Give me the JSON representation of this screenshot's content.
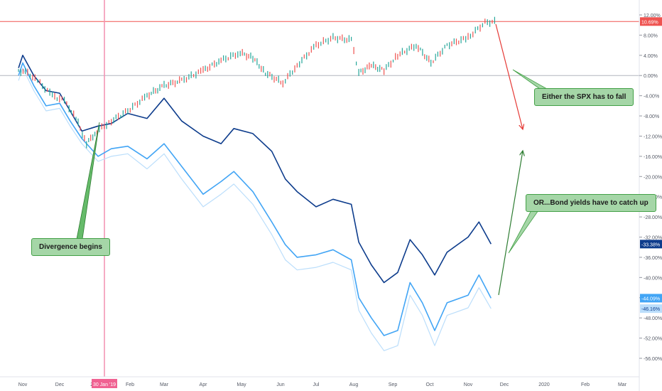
{
  "chart_data": {
    "type": "line",
    "x_labels": [
      "Nov",
      "Dec",
      "2019",
      "Jan '19",
      "Feb",
      "Mar",
      "Apr",
      "May",
      "Jun",
      "Jul",
      "Aug",
      "Sep",
      "Oct",
      "Nov",
      "Dec",
      "2020",
      "Feb",
      "Mar"
    ],
    "y_ticks": [
      "12.00%",
      "8.00%",
      "4.00%",
      "0.00%",
      "-4.00%",
      "-8.00%",
      "-12.00%",
      "-16.00%",
      "-20.00%",
      "-24.00%",
      "-28.00%",
      "-32.00%",
      "-36.00%",
      "-40.00%",
      "-44.00%",
      "-48.00%",
      "-52.00%",
      "-56.00%"
    ],
    "ylim": [
      -58,
      13
    ],
    "y_unit": "%",
    "baseline": 0,
    "crosshair_x_label": "30 Jan '19",
    "reference_line": {
      "value": 10.69,
      "label": "10.69%",
      "color": "#ef5350"
    },
    "series": [
      {
        "color": "#26a69a",
        "style": "ohlc",
        "last_label": "10.69%",
        "points": [
          [
            "2018-10-25",
            1.0
          ],
          [
            "2018-11-05",
            0.5
          ],
          [
            "2018-11-15",
            -1.5
          ],
          [
            "2018-11-25",
            -4.0
          ],
          [
            "2018-12-05",
            -5.0
          ],
          [
            "2018-12-15",
            -8.5
          ],
          [
            "2018-12-24",
            -13.5
          ],
          [
            "2019-01-02",
            -11.0
          ],
          [
            "2019-01-15",
            -9.0
          ],
          [
            "2019-01-30",
            -7.0
          ],
          [
            "2019-02-15",
            -4.0
          ],
          [
            "2019-03-01",
            -2.0
          ],
          [
            "2019-03-15",
            -1.0
          ],
          [
            "2019-04-01",
            1.0
          ],
          [
            "2019-04-15",
            3.0
          ],
          [
            "2019-04-30",
            4.5
          ],
          [
            "2019-05-10",
            3.5
          ],
          [
            "2019-05-20",
            0.5
          ],
          [
            "2019-06-03",
            -1.5
          ],
          [
            "2019-06-15",
            2.0
          ],
          [
            "2019-07-01",
            6.0
          ],
          [
            "2019-07-15",
            7.5
          ],
          [
            "2019-07-30",
            7.0
          ],
          [
            "2019-08-05",
            0.5
          ],
          [
            "2019-08-15",
            2.0
          ],
          [
            "2019-08-25",
            1.0
          ],
          [
            "2019-09-05",
            4.0
          ],
          [
            "2019-09-20",
            6.0
          ],
          [
            "2019-10-02",
            2.5
          ],
          [
            "2019-10-15",
            6.0
          ],
          [
            "2019-11-01",
            7.5
          ],
          [
            "2019-11-15",
            10.5
          ],
          [
            "2019-11-25",
            10.69
          ]
        ]
      },
      {
        "color": "#0d3c8c",
        "last_label": "-33.38%",
        "points": [
          [
            "2018-10-25",
            1.5
          ],
          [
            "2018-11-01",
            4.0
          ],
          [
            "2018-11-10",
            0.0
          ],
          [
            "2018-11-20",
            -3.0
          ],
          [
            "2018-12-01",
            -3.5
          ],
          [
            "2018-12-10",
            -7.0
          ],
          [
            "2018-12-20",
            -11.0
          ],
          [
            "2019-01-03",
            -10.0
          ],
          [
            "2019-01-15",
            -9.5
          ],
          [
            "2019-01-30",
            -7.5
          ],
          [
            "2019-02-15",
            -8.5
          ],
          [
            "2019-03-01",
            -4.5
          ],
          [
            "2019-03-15",
            -9.0
          ],
          [
            "2019-04-01",
            -12.0
          ],
          [
            "2019-04-15",
            -13.5
          ],
          [
            "2019-04-25",
            -10.5
          ],
          [
            "2019-05-10",
            -11.5
          ],
          [
            "2019-05-25",
            -15.0
          ],
          [
            "2019-06-05",
            -20.5
          ],
          [
            "2019-06-15",
            -23.0
          ],
          [
            "2019-07-01",
            -26.0
          ],
          [
            "2019-07-15",
            -24.5
          ],
          [
            "2019-07-30",
            -25.5
          ],
          [
            "2019-08-05",
            -33.0
          ],
          [
            "2019-08-15",
            -37.5
          ],
          [
            "2019-08-25",
            -41.0
          ],
          [
            "2019-09-05",
            -39.0
          ],
          [
            "2019-09-15",
            -32.5
          ],
          [
            "2019-09-25",
            -35.5
          ],
          [
            "2019-10-05",
            -39.5
          ],
          [
            "2019-10-15",
            -35.0
          ],
          [
            "2019-11-01",
            -32.0
          ],
          [
            "2019-11-10",
            -29.0
          ],
          [
            "2019-11-20",
            -33.38
          ]
        ]
      },
      {
        "color": "#42a5f5",
        "last_label": "-44.09%",
        "points": [
          [
            "2018-10-25",
            0.0
          ],
          [
            "2018-11-01",
            2.5
          ],
          [
            "2018-11-10",
            -2.0
          ],
          [
            "2018-11-20",
            -6.0
          ],
          [
            "2018-12-01",
            -5.5
          ],
          [
            "2018-12-10",
            -9.0
          ],
          [
            "2018-12-20",
            -12.5
          ],
          [
            "2019-01-03",
            -16.0
          ],
          [
            "2019-01-15",
            -14.5
          ],
          [
            "2019-01-30",
            -14.0
          ],
          [
            "2019-02-15",
            -16.5
          ],
          [
            "2019-03-01",
            -13.5
          ],
          [
            "2019-03-15",
            -18.0
          ],
          [
            "2019-04-01",
            -23.5
          ],
          [
            "2019-04-15",
            -21.0
          ],
          [
            "2019-04-25",
            -19.0
          ],
          [
            "2019-05-10",
            -23.0
          ],
          [
            "2019-05-25",
            -29.0
          ],
          [
            "2019-06-05",
            -33.5
          ],
          [
            "2019-06-15",
            -36.0
          ],
          [
            "2019-07-01",
            -35.5
          ],
          [
            "2019-07-15",
            -34.5
          ],
          [
            "2019-07-30",
            -36.5
          ],
          [
            "2019-08-05",
            -44.0
          ],
          [
            "2019-08-15",
            -48.0
          ],
          [
            "2019-08-25",
            -51.5
          ],
          [
            "2019-09-05",
            -50.5
          ],
          [
            "2019-09-15",
            -41.0
          ],
          [
            "2019-09-25",
            -45.0
          ],
          [
            "2019-10-05",
            -50.5
          ],
          [
            "2019-10-15",
            -45.0
          ],
          [
            "2019-11-01",
            -43.5
          ],
          [
            "2019-11-10",
            -39.5
          ],
          [
            "2019-11-20",
            -44.09
          ]
        ]
      },
      {
        "color": "#bbdefb",
        "last_label": "-46.16%",
        "points": [
          [
            "2018-10-25",
            -1.0
          ],
          [
            "2018-11-01",
            1.5
          ],
          [
            "2018-11-10",
            -3.0
          ],
          [
            "2018-11-20",
            -7.0
          ],
          [
            "2018-12-01",
            -6.5
          ],
          [
            "2018-12-10",
            -10.0
          ],
          [
            "2018-12-20",
            -13.5
          ],
          [
            "2019-01-03",
            -17.0
          ],
          [
            "2019-01-15",
            -16.0
          ],
          [
            "2019-01-30",
            -15.5
          ],
          [
            "2019-02-15",
            -18.5
          ],
          [
            "2019-03-01",
            -15.5
          ],
          [
            "2019-03-15",
            -20.5
          ],
          [
            "2019-04-01",
            -26.0
          ],
          [
            "2019-04-15",
            -23.5
          ],
          [
            "2019-04-25",
            -21.5
          ],
          [
            "2019-05-10",
            -25.5
          ],
          [
            "2019-05-25",
            -31.5
          ],
          [
            "2019-06-05",
            -36.5
          ],
          [
            "2019-06-15",
            -38.5
          ],
          [
            "2019-07-01",
            -38.0
          ],
          [
            "2019-07-15",
            -37.0
          ],
          [
            "2019-07-30",
            -38.5
          ],
          [
            "2019-08-05",
            -46.5
          ],
          [
            "2019-08-15",
            -51.0
          ],
          [
            "2019-08-25",
            -54.5
          ],
          [
            "2019-09-05",
            -53.5
          ],
          [
            "2019-09-15",
            -43.5
          ],
          [
            "2019-09-25",
            -47.5
          ],
          [
            "2019-10-05",
            -53.5
          ],
          [
            "2019-10-15",
            -47.5
          ],
          [
            "2019-11-01",
            -46.0
          ],
          [
            "2019-11-10",
            -42.0
          ],
          [
            "2019-11-20",
            -46.16
          ]
        ]
      }
    ],
    "annotations": [
      {
        "text": "Divergence begins",
        "color": "#a5d6a7"
      },
      {
        "text": "Either the SPX has to fall",
        "color": "#a5d6a7"
      },
      {
        "text": "OR...Bond yields have to catch up",
        "color": "#a5d6a7"
      }
    ]
  }
}
